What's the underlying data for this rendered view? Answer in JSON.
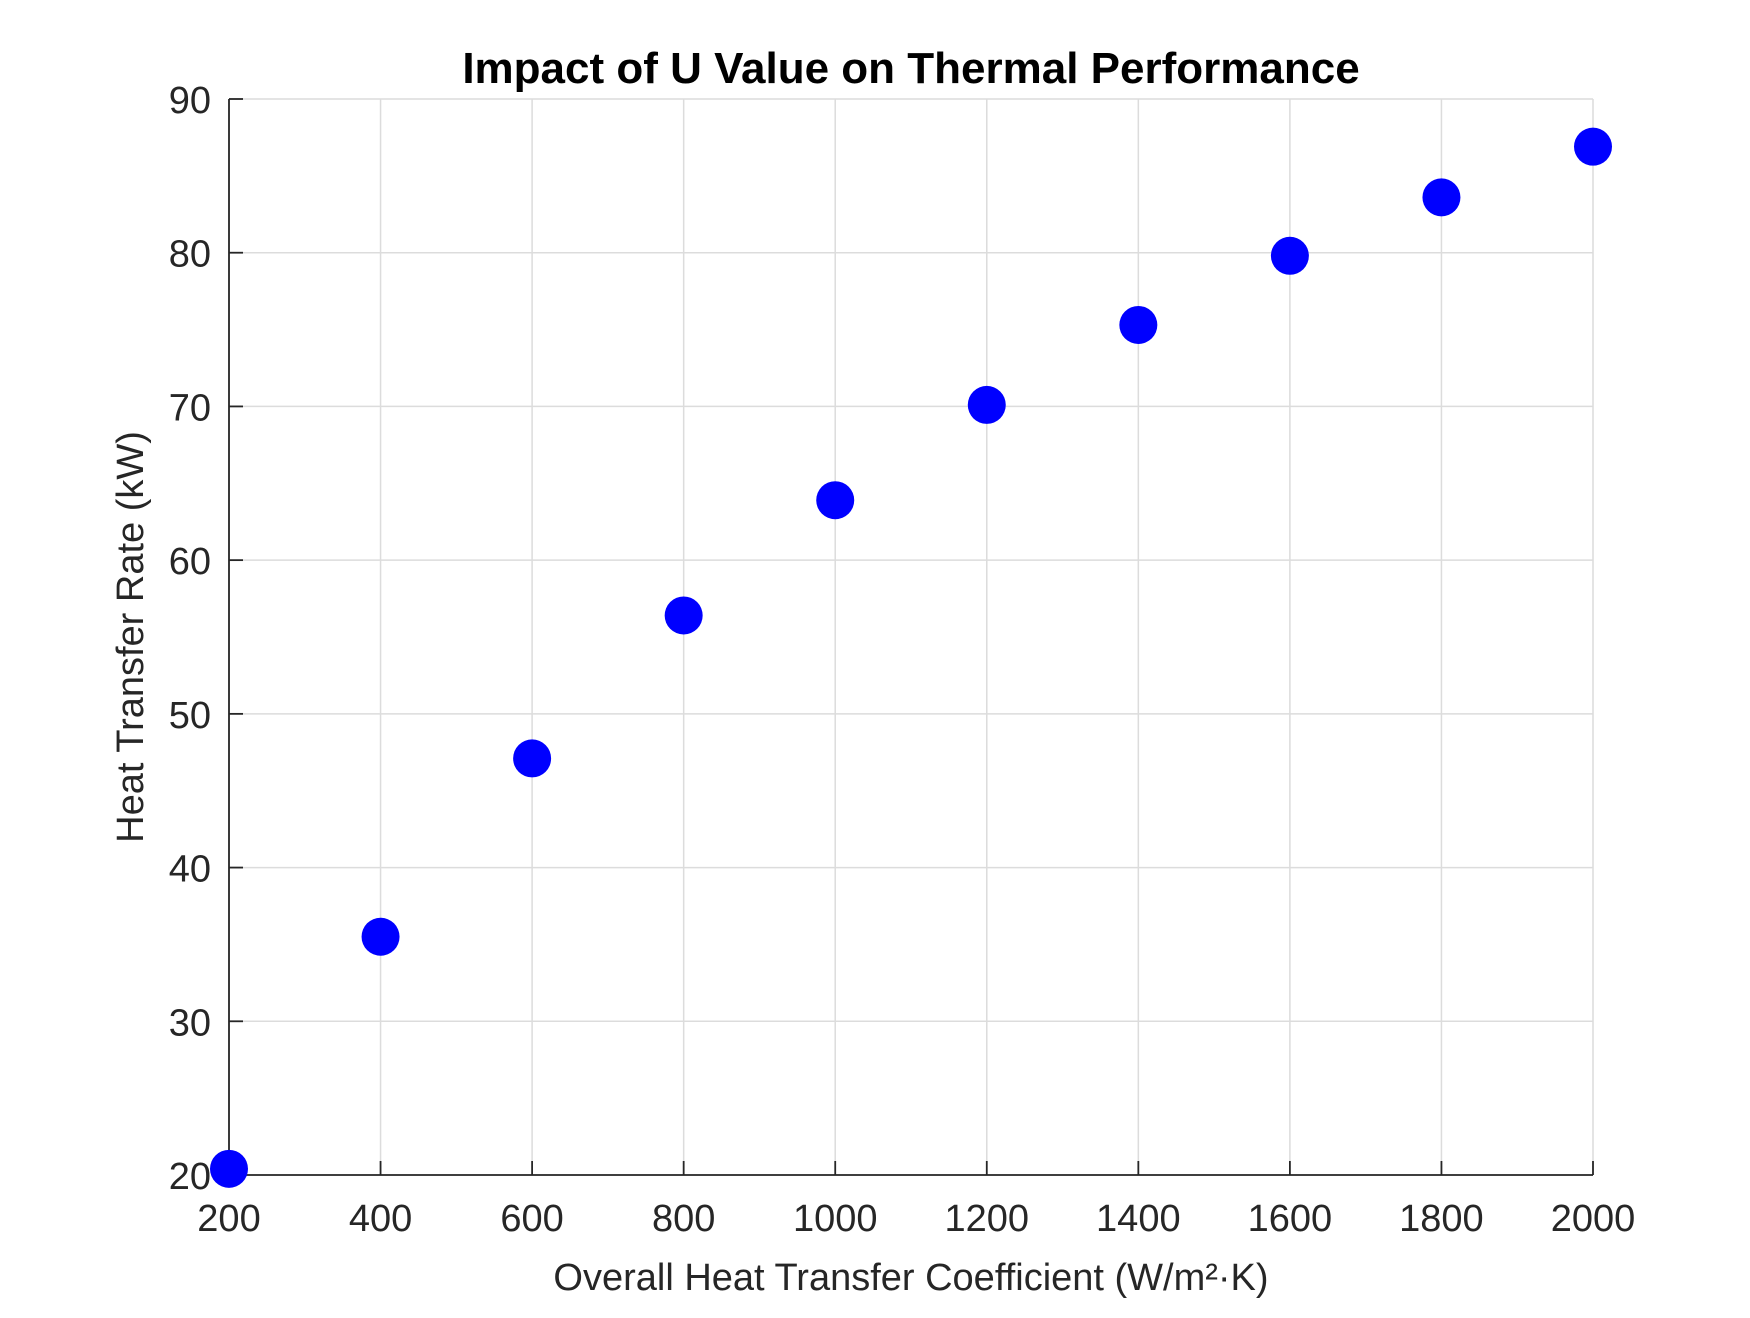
{
  "chart_data": {
    "type": "scatter",
    "title": "Impact of U Value on Thermal Performance",
    "xlabel": "Overall Heat Transfer Coefficient (W/m²·K)",
    "ylabel": "Heat Transfer Rate (kW)",
    "xlim": [
      200,
      2000
    ],
    "ylim": [
      20,
      90
    ],
    "xticks": [
      200,
      400,
      600,
      800,
      1000,
      1200,
      1400,
      1600,
      1800,
      2000
    ],
    "yticks": [
      20,
      30,
      40,
      50,
      60,
      70,
      80,
      90
    ],
    "xtick_labels": [
      "200",
      "400",
      "600",
      "800",
      "1000",
      "1200",
      "1400",
      "1600",
      "1800",
      "2000"
    ],
    "ytick_labels": [
      "20",
      "30",
      "40",
      "50",
      "60",
      "70",
      "80",
      "90"
    ],
    "grid": true,
    "series": [
      {
        "color": "#0000ff",
        "x": [
          200,
          400,
          600,
          800,
          1000,
          1200,
          1400,
          1600,
          1800,
          2000
        ],
        "y": [
          20.4,
          35.5,
          47.1,
          56.4,
          63.9,
          70.1,
          75.3,
          79.8,
          83.6,
          86.9
        ]
      }
    ]
  }
}
